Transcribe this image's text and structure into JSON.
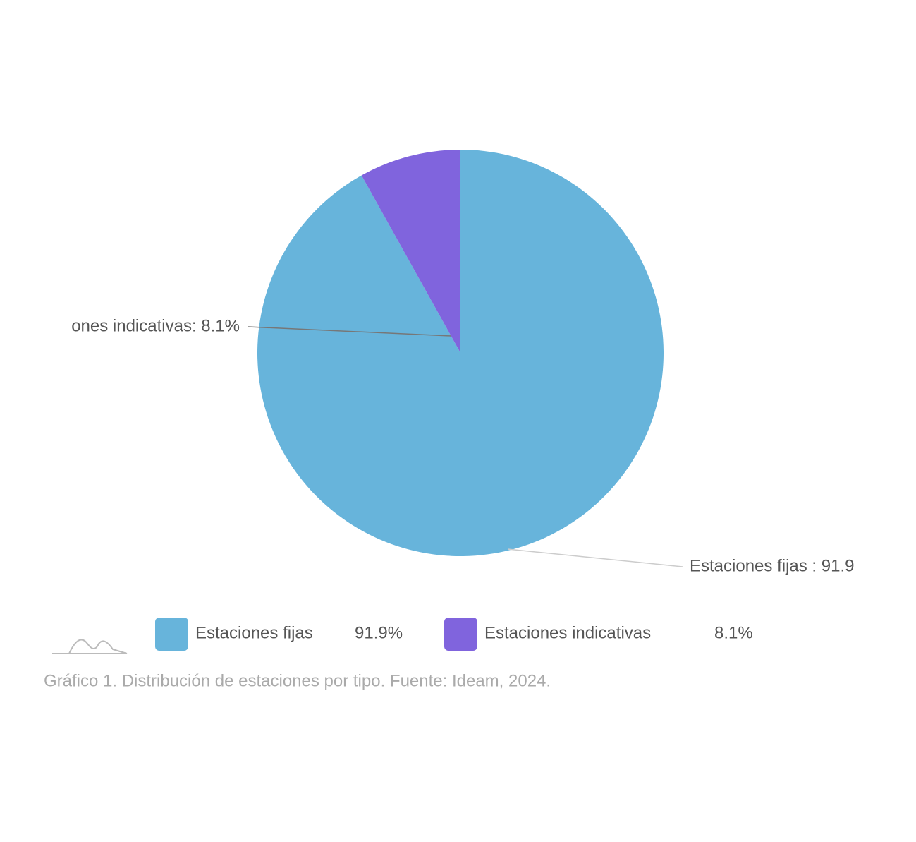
{
  "chart_data": {
    "type": "pie",
    "categories": [
      "Estaciones fijas",
      "Estaciones indicativas"
    ],
    "values": [
      91.9,
      8.1
    ],
    "value_labels": [
      "91.9%",
      "8.1%"
    ],
    "colors": [
      "#67b4db",
      "#8064dd"
    ],
    "callout_labels": [
      "Estaciones fijas : 91.9",
      "ones indicativas: 8.1%"
    ],
    "caption": "Gráfico 1. Distribución de estaciones por tipo. Fuente: Ideam, 2024."
  }
}
